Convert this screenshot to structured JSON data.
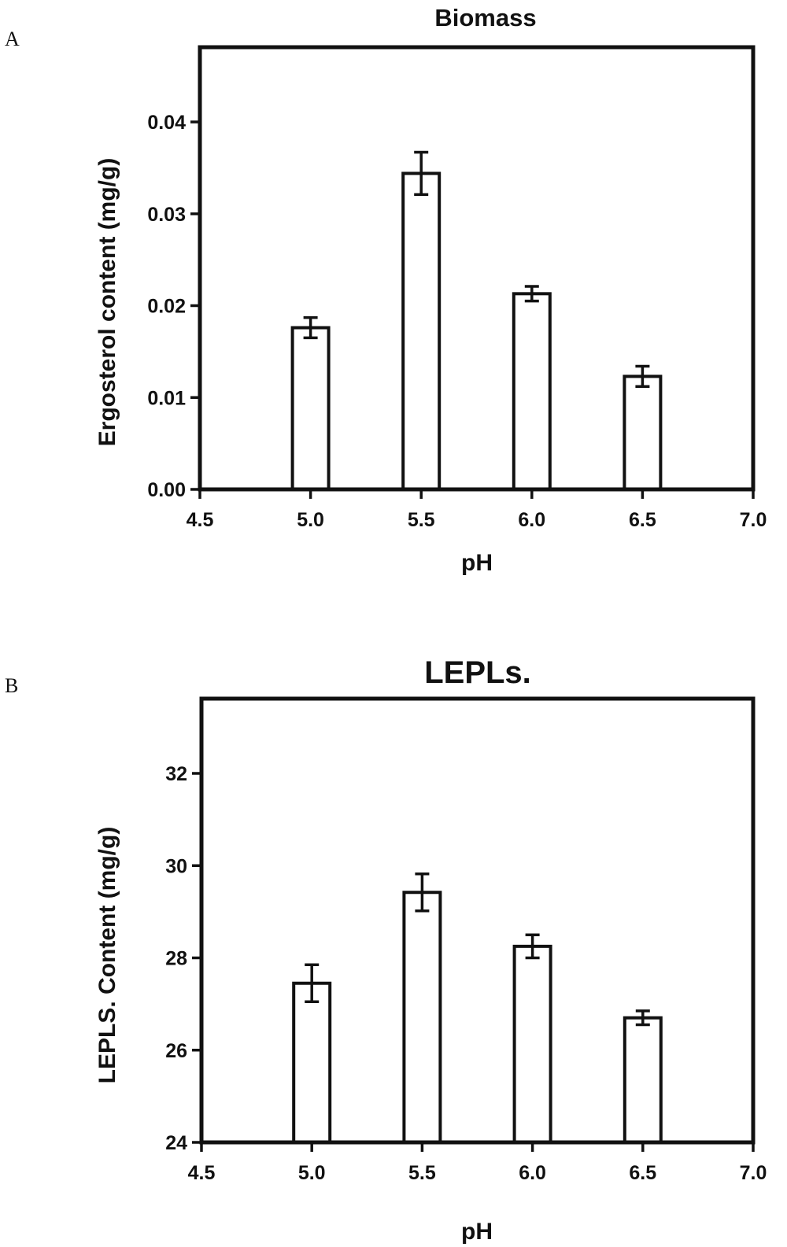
{
  "figure": {
    "panels": [
      {
        "letter": "A"
      },
      {
        "letter": "B"
      }
    ]
  },
  "chart_data": [
    {
      "type": "bar",
      "title": "Biomass",
      "xlabel": "pH",
      "ylabel": "Ergosterol content (mg/g)",
      "x": [
        5.0,
        5.5,
        6.0,
        6.5
      ],
      "values": [
        0.0176,
        0.0344,
        0.0213,
        0.0123
      ],
      "errors": [
        0.0011,
        0.0023,
        0.0008,
        0.0011
      ],
      "xlim": [
        4.5,
        7.0
      ],
      "ylim": [
        0,
        0.04
      ],
      "xticks": [
        "4.5",
        "5.0",
        "5.5",
        "6.0",
        "6.5",
        "7.0"
      ],
      "yticks": [
        "0.00",
        "0.01",
        "0.02",
        "0.03",
        "0.04"
      ],
      "bar_fill": "#ffffff",
      "bar_stroke": "#111111",
      "grid": false
    },
    {
      "type": "bar",
      "title": "LEPLs.",
      "xlabel": "pH",
      "ylabel": "LEPLS. Content (mg/g)",
      "x": [
        5.0,
        5.5,
        6.0,
        6.5
      ],
      "values": [
        27.45,
        29.42,
        28.25,
        26.7
      ],
      "errors": [
        0.4,
        0.4,
        0.25,
        0.15
      ],
      "xlim": [
        4.5,
        7.0
      ],
      "ylim": [
        24,
        32
      ],
      "xticks": [
        "4.5",
        "5.0",
        "5.5",
        "6.0",
        "6.5",
        "7.0"
      ],
      "yticks": [
        "24",
        "26",
        "28",
        "30",
        "32"
      ],
      "bar_fill": "#ffffff",
      "bar_stroke": "#111111",
      "grid": false
    }
  ]
}
